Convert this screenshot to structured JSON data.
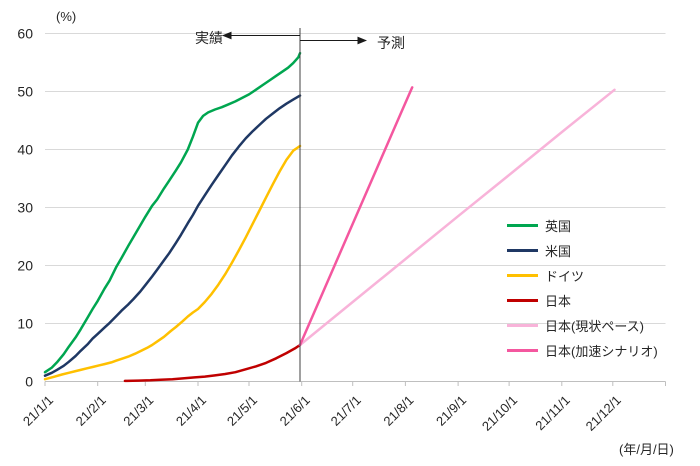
{
  "chart_data": {
    "type": "line",
    "title": "",
    "y_unit_label": "(%)",
    "x_unit_label": "(年/月/日)",
    "ylim": [
      0,
      60
    ],
    "yticks": [
      0,
      10,
      20,
      30,
      40,
      50,
      60
    ],
    "grid": "horizontal",
    "grid_color": "#d9d9d9",
    "axis_color": "#bfbfbf",
    "x_axis_end_day": 365,
    "xticks": [
      {
        "label": "21/1/1",
        "day": 0
      },
      {
        "label": "21/2/1",
        "day": 31
      },
      {
        "label": "21/3/1",
        "day": 59
      },
      {
        "label": "21/4/1",
        "day": 90
      },
      {
        "label": "21/5/1",
        "day": 120
      },
      {
        "label": "21/6/1",
        "day": 151
      },
      {
        "label": "21/7/1",
        "day": 181
      },
      {
        "label": "21/8/1",
        "day": 212
      },
      {
        "label": "21/9/1",
        "day": 243
      },
      {
        "label": "21/10/1",
        "day": 273
      },
      {
        "label": "21/11/1",
        "day": 304
      },
      {
        "label": "21/12/1",
        "day": 334
      }
    ],
    "divider": {
      "day": 150,
      "color": "#404040",
      "actual_label": "実績",
      "forecast_label": "予測"
    },
    "legend_position": "inside-right",
    "series": [
      {
        "name": "英国",
        "color": "#00A650",
        "points": [
          [
            0,
            1.6
          ],
          [
            4,
            2.4
          ],
          [
            7,
            3.3
          ],
          [
            11,
            4.7
          ],
          [
            14,
            6.0
          ],
          [
            18,
            7.6
          ],
          [
            21,
            9.0
          ],
          [
            25,
            11.0
          ],
          [
            28,
            12.5
          ],
          [
            31,
            13.9
          ],
          [
            35,
            16.0
          ],
          [
            38,
            17.4
          ],
          [
            42,
            19.8
          ],
          [
            45,
            21.3
          ],
          [
            49,
            23.4
          ],
          [
            52,
            24.9
          ],
          [
            56,
            26.9
          ],
          [
            59,
            28.4
          ],
          [
            63,
            30.3
          ],
          [
            66,
            31.4
          ],
          [
            70,
            33.3
          ],
          [
            73,
            34.6
          ],
          [
            77,
            36.4
          ],
          [
            80,
            37.8
          ],
          [
            84,
            40.0
          ],
          [
            87,
            42.2
          ],
          [
            90,
            44.6
          ],
          [
            93,
            45.8
          ],
          [
            96,
            46.4
          ],
          [
            100,
            46.9
          ],
          [
            104,
            47.3
          ],
          [
            108,
            47.8
          ],
          [
            112,
            48.3
          ],
          [
            116,
            48.9
          ],
          [
            120,
            49.5
          ],
          [
            124,
            50.3
          ],
          [
            128,
            51.1
          ],
          [
            132,
            51.9
          ],
          [
            136,
            52.7
          ],
          [
            140,
            53.5
          ],
          [
            143,
            54.1
          ],
          [
            146,
            54.9
          ],
          [
            149,
            55.9
          ],
          [
            150,
            56.6
          ]
        ]
      },
      {
        "name": "米国",
        "color": "#1F3864",
        "points": [
          [
            0,
            1.0
          ],
          [
            4,
            1.5
          ],
          [
            7,
            2.0
          ],
          [
            11,
            2.7
          ],
          [
            14,
            3.4
          ],
          [
            18,
            4.4
          ],
          [
            21,
            5.3
          ],
          [
            25,
            6.4
          ],
          [
            28,
            7.4
          ],
          [
            31,
            8.2
          ],
          [
            35,
            9.3
          ],
          [
            38,
            10.1
          ],
          [
            42,
            11.3
          ],
          [
            45,
            12.2
          ],
          [
            49,
            13.3
          ],
          [
            52,
            14.2
          ],
          [
            56,
            15.5
          ],
          [
            59,
            16.6
          ],
          [
            63,
            18.1
          ],
          [
            66,
            19.3
          ],
          [
            70,
            20.9
          ],
          [
            73,
            22.1
          ],
          [
            77,
            23.9
          ],
          [
            80,
            25.3
          ],
          [
            84,
            27.3
          ],
          [
            87,
            28.7
          ],
          [
            90,
            30.3
          ],
          [
            94,
            32.1
          ],
          [
            98,
            33.9
          ],
          [
            102,
            35.6
          ],
          [
            106,
            37.3
          ],
          [
            110,
            39.0
          ],
          [
            114,
            40.5
          ],
          [
            118,
            41.9
          ],
          [
            122,
            43.1
          ],
          [
            126,
            44.2
          ],
          [
            130,
            45.3
          ],
          [
            134,
            46.2
          ],
          [
            138,
            47.1
          ],
          [
            142,
            47.9
          ],
          [
            146,
            48.6
          ],
          [
            150,
            49.3
          ]
        ]
      },
      {
        "name": "ドイツ",
        "color": "#FFC000",
        "points": [
          [
            0,
            0.4
          ],
          [
            5,
            0.8
          ],
          [
            10,
            1.2
          ],
          [
            14,
            1.5
          ],
          [
            18,
            1.8
          ],
          [
            21,
            2.0
          ],
          [
            25,
            2.3
          ],
          [
            28,
            2.5
          ],
          [
            32,
            2.8
          ],
          [
            35,
            3.0
          ],
          [
            39,
            3.3
          ],
          [
            42,
            3.6
          ],
          [
            46,
            4.0
          ],
          [
            49,
            4.3
          ],
          [
            53,
            4.8
          ],
          [
            56,
            5.2
          ],
          [
            60,
            5.8
          ],
          [
            63,
            6.3
          ],
          [
            67,
            7.1
          ],
          [
            70,
            7.7
          ],
          [
            74,
            8.7
          ],
          [
            77,
            9.4
          ],
          [
            81,
            10.4
          ],
          [
            84,
            11.2
          ],
          [
            87,
            11.9
          ],
          [
            90,
            12.5
          ],
          [
            94,
            13.7
          ],
          [
            98,
            15.1
          ],
          [
            102,
            16.7
          ],
          [
            106,
            18.5
          ],
          [
            110,
            20.5
          ],
          [
            114,
            22.6
          ],
          [
            118,
            24.8
          ],
          [
            122,
            27.1
          ],
          [
            126,
            29.4
          ],
          [
            130,
            31.7
          ],
          [
            134,
            34.0
          ],
          [
            138,
            36.2
          ],
          [
            142,
            38.2
          ],
          [
            146,
            39.8
          ],
          [
            150,
            40.6
          ]
        ]
      },
      {
        "name": "日本",
        "color": "#C00000",
        "points": [
          [
            47,
            0.1
          ],
          [
            55,
            0.15
          ],
          [
            62,
            0.2
          ],
          [
            68,
            0.3
          ],
          [
            75,
            0.4
          ],
          [
            82,
            0.55
          ],
          [
            88,
            0.7
          ],
          [
            94,
            0.85
          ],
          [
            100,
            1.05
          ],
          [
            106,
            1.3
          ],
          [
            112,
            1.6
          ],
          [
            118,
            2.1
          ],
          [
            124,
            2.6
          ],
          [
            130,
            3.2
          ],
          [
            136,
            4.0
          ],
          [
            142,
            4.9
          ],
          [
            147,
            5.7
          ],
          [
            150,
            6.3
          ]
        ]
      },
      {
        "name": "日本(現状ペース)",
        "color": "#F8B3D9",
        "points": [
          [
            150,
            6.3
          ],
          [
            181,
            13.7
          ],
          [
            212,
            21.1
          ],
          [
            243,
            28.5
          ],
          [
            273,
            35.6
          ],
          [
            304,
            43.0
          ],
          [
            335,
            50.3
          ]
        ]
      },
      {
        "name": "日本(加速シナリオ)",
        "color": "#F4579F",
        "points": [
          [
            150,
            6.3
          ],
          [
            165,
            16.4
          ],
          [
            180,
            26.5
          ],
          [
            195,
            36.6
          ],
          [
            210,
            46.7
          ],
          [
            216,
            50.7
          ]
        ]
      }
    ]
  }
}
